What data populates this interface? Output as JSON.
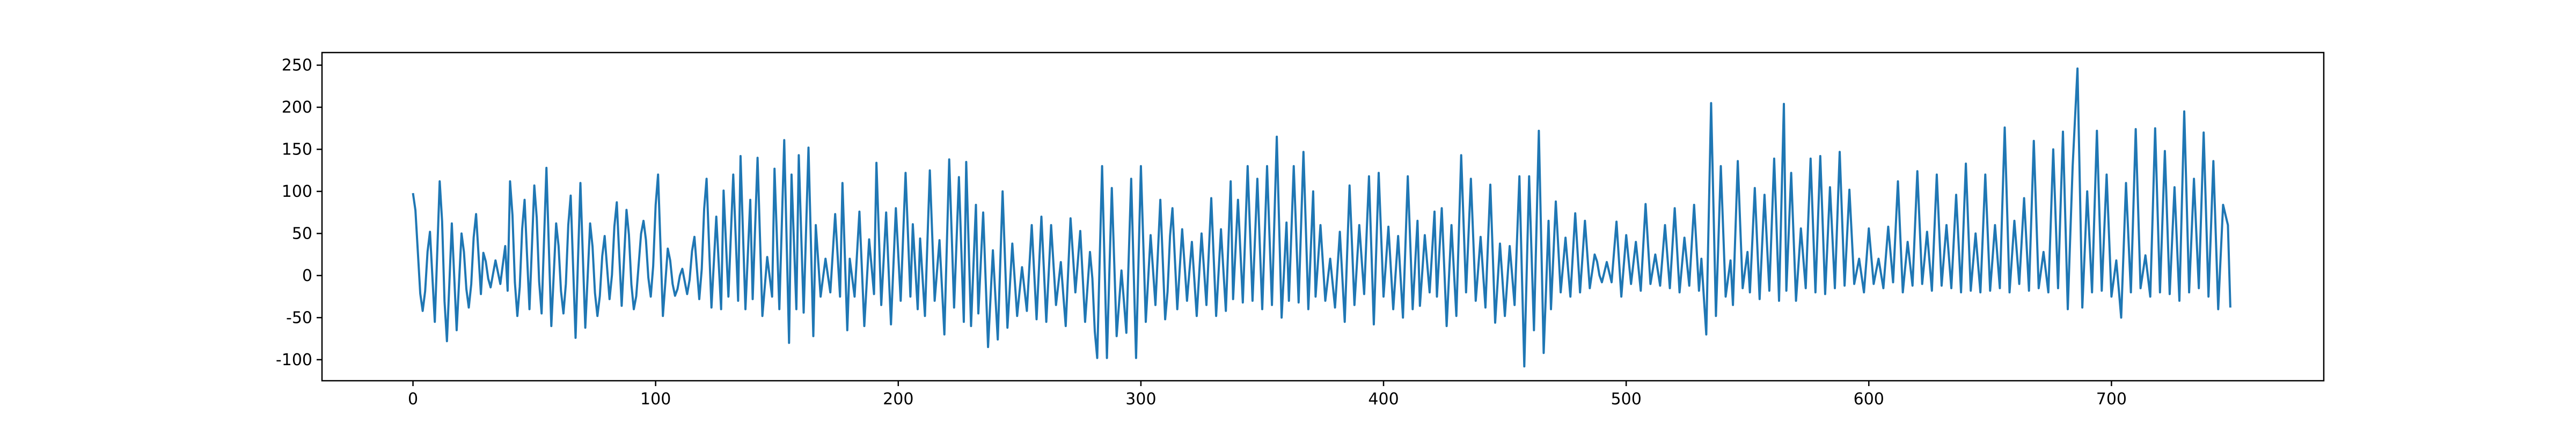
{
  "chart_data": {
    "type": "line",
    "title": "",
    "xlabel": "",
    "ylabel": "",
    "xlim": [
      -37.5,
      787.5
    ],
    "ylim": [
      -125,
      265
    ],
    "xticks": [
      0,
      100,
      200,
      300,
      400,
      500,
      600,
      700
    ],
    "yticks": [
      -100,
      -50,
      0,
      50,
      100,
      150,
      200,
      250
    ],
    "grid": false,
    "legend": "none",
    "line_color": "#1f77b4",
    "n_points": 750,
    "peaks": [
      [
        0,
        98
      ],
      [
        7,
        52
      ],
      [
        11,
        112
      ],
      [
        16,
        62
      ],
      [
        20,
        50
      ],
      [
        26,
        73
      ],
      [
        29,
        27
      ],
      [
        34,
        18
      ],
      [
        38,
        35
      ],
      [
        40,
        112
      ],
      [
        46,
        90
      ],
      [
        50,
        107
      ],
      [
        55,
        128
      ],
      [
        59,
        62
      ],
      [
        65,
        95
      ],
      [
        69,
        110
      ],
      [
        73,
        62
      ],
      [
        79,
        47
      ],
      [
        84,
        87
      ],
      [
        88,
        78
      ],
      [
        95,
        65
      ],
      [
        101,
        120
      ],
      [
        105,
        32
      ],
      [
        111,
        8
      ],
      [
        116,
        46
      ],
      [
        121,
        115
      ],
      [
        125,
        70
      ],
      [
        128,
        101
      ],
      [
        132,
        120
      ],
      [
        135,
        142
      ],
      [
        139,
        90
      ],
      [
        142,
        140
      ],
      [
        146,
        22
      ],
      [
        149,
        127
      ],
      [
        153,
        161
      ],
      [
        156,
        120
      ],
      [
        159,
        143
      ],
      [
        163,
        152
      ],
      [
        166,
        60
      ],
      [
        170,
        20
      ],
      [
        174,
        73
      ],
      [
        177,
        110
      ],
      [
        180,
        20
      ],
      [
        184,
        76
      ],
      [
        188,
        43
      ],
      [
        191,
        134
      ],
      [
        195,
        75
      ],
      [
        199,
        80
      ],
      [
        203,
        122
      ],
      [
        206,
        61
      ],
      [
        209,
        44
      ],
      [
        213,
        125
      ],
      [
        217,
        42
      ],
      [
        221,
        138
      ],
      [
        225,
        117
      ],
      [
        228,
        135
      ],
      [
        232,
        84
      ],
      [
        235,
        75
      ],
      [
        239,
        30
      ],
      [
        243,
        100
      ],
      [
        247,
        38
      ],
      [
        251,
        10
      ],
      [
        255,
        60
      ],
      [
        259,
        70
      ],
      [
        263,
        60
      ],
      [
        267,
        16
      ],
      [
        271,
        68
      ],
      [
        275,
        53
      ],
      [
        279,
        28
      ],
      [
        284,
        130
      ],
      [
        288,
        104
      ],
      [
        292,
        6
      ],
      [
        296,
        115
      ],
      [
        300,
        130
      ],
      [
        304,
        48
      ],
      [
        308,
        90
      ],
      [
        313,
        80
      ],
      [
        317,
        55
      ],
      [
        321,
        40
      ],
      [
        325,
        50
      ],
      [
        329,
        92
      ],
      [
        333,
        55
      ],
      [
        337,
        112
      ],
      [
        340,
        90
      ],
      [
        344,
        130
      ],
      [
        348,
        115
      ],
      [
        352,
        130
      ],
      [
        356,
        165
      ],
      [
        360,
        63
      ],
      [
        363,
        130
      ],
      [
        367,
        147
      ],
      [
        371,
        100
      ],
      [
        374,
        60
      ],
      [
        378,
        20
      ],
      [
        382,
        52
      ],
      [
        386,
        107
      ],
      [
        390,
        60
      ],
      [
        394,
        118
      ],
      [
        398,
        122
      ],
      [
        402,
        58
      ],
      [
        406,
        47
      ],
      [
        410,
        118
      ],
      [
        414,
        65
      ],
      [
        417,
        48
      ],
      [
        421,
        76
      ],
      [
        424,
        80
      ],
      [
        428,
        60
      ],
      [
        432,
        143
      ],
      [
        436,
        115
      ],
      [
        440,
        46
      ],
      [
        444,
        108
      ],
      [
        448,
        38
      ],
      [
        452,
        35
      ],
      [
        456,
        118
      ],
      [
        460,
        118
      ],
      [
        464,
        172
      ],
      [
        468,
        65
      ],
      [
        471,
        88
      ],
      [
        475,
        45
      ],
      [
        479,
        74
      ],
      [
        483,
        65
      ],
      [
        487,
        25
      ],
      [
        492,
        16
      ],
      [
        496,
        64
      ],
      [
        500,
        48
      ],
      [
        504,
        40
      ],
      [
        508,
        85
      ],
      [
        512,
        25
      ],
      [
        516,
        60
      ],
      [
        520,
        80
      ],
      [
        524,
        45
      ],
      [
        528,
        84
      ],
      [
        531,
        20
      ],
      [
        535,
        205
      ],
      [
        539,
        130
      ],
      [
        543,
        18
      ],
      [
        546,
        136
      ],
      [
        550,
        28
      ],
      [
        553,
        104
      ],
      [
        557,
        96
      ],
      [
        561,
        139
      ],
      [
        565,
        204
      ],
      [
        568,
        122
      ],
      [
        572,
        56
      ],
      [
        576,
        139
      ],
      [
        580,
        142
      ],
      [
        584,
        105
      ],
      [
        588,
        147
      ],
      [
        592,
        102
      ],
      [
        596,
        20
      ],
      [
        600,
        56
      ],
      [
        604,
        20
      ],
      [
        608,
        58
      ],
      [
        612,
        112
      ],
      [
        616,
        40
      ],
      [
        620,
        124
      ],
      [
        624,
        52
      ],
      [
        628,
        120
      ],
      [
        632,
        60
      ],
      [
        636,
        96
      ],
      [
        640,
        133
      ],
      [
        644,
        50
      ],
      [
        648,
        120
      ],
      [
        652,
        60
      ],
      [
        656,
        176
      ],
      [
        660,
        65
      ],
      [
        664,
        92
      ],
      [
        668,
        160
      ],
      [
        672,
        28
      ],
      [
        676,
        150
      ],
      [
        680,
        171
      ],
      [
        684,
        130
      ],
      [
        686,
        246
      ],
      [
        690,
        100
      ],
      [
        694,
        172
      ],
      [
        698,
        120
      ],
      [
        702,
        18
      ],
      [
        706,
        110
      ],
      [
        710,
        174
      ],
      [
        714,
        24
      ],
      [
        718,
        175
      ],
      [
        722,
        148
      ],
      [
        726,
        105
      ],
      [
        730,
        195
      ],
      [
        734,
        115
      ],
      [
        738,
        170
      ],
      [
        742,
        136
      ],
      [
        746,
        84
      ],
      [
        748,
        60
      ]
    ],
    "troughs": [
      [
        4,
        -42
      ],
      [
        9,
        -55
      ],
      [
        14,
        -78
      ],
      [
        18,
        -65
      ],
      [
        23,
        -38
      ],
      [
        28,
        -22
      ],
      [
        32,
        -14
      ],
      [
        36,
        -10
      ],
      [
        39,
        -18
      ],
      [
        43,
        -48
      ],
      [
        48,
        -40
      ],
      [
        53,
        -45
      ],
      [
        57,
        -60
      ],
      [
        62,
        -45
      ],
      [
        67,
        -74
      ],
      [
        71,
        -62
      ],
      [
        76,
        -48
      ],
      [
        81,
        -28
      ],
      [
        86,
        -36
      ],
      [
        91,
        -40
      ],
      [
        98,
        -25
      ],
      [
        103,
        -48
      ],
      [
        108,
        -24
      ],
      [
        113,
        -22
      ],
      [
        118,
        -28
      ],
      [
        123,
        -38
      ],
      [
        127,
        -40
      ],
      [
        130,
        -25
      ],
      [
        134,
        -30
      ],
      [
        137,
        -40
      ],
      [
        140,
        -28
      ],
      [
        144,
        -48
      ],
      [
        148,
        -25
      ],
      [
        151,
        -40
      ],
      [
        155,
        -80
      ],
      [
        158,
        -40
      ],
      [
        161,
        -44
      ],
      [
        165,
        -72
      ],
      [
        168,
        -25
      ],
      [
        172,
        -20
      ],
      [
        176,
        -25
      ],
      [
        179,
        -65
      ],
      [
        182,
        -25
      ],
      [
        186,
        -60
      ],
      [
        190,
        -22
      ],
      [
        193,
        -35
      ],
      [
        197,
        -58
      ],
      [
        201,
        -30
      ],
      [
        205,
        -25
      ],
      [
        208,
        -40
      ],
      [
        211,
        -48
      ],
      [
        215,
        -30
      ],
      [
        219,
        -70
      ],
      [
        223,
        -38
      ],
      [
        227,
        -55
      ],
      [
        230,
        -60
      ],
      [
        233,
        -45
      ],
      [
        237,
        -85
      ],
      [
        241,
        -76
      ],
      [
        245,
        -62
      ],
      [
        249,
        -48
      ],
      [
        253,
        -42
      ],
      [
        257,
        -52
      ],
      [
        261,
        -55
      ],
      [
        265,
        -35
      ],
      [
        269,
        -60
      ],
      [
        273,
        -20
      ],
      [
        277,
        -55
      ],
      [
        282,
        -98
      ],
      [
        286,
        -98
      ],
      [
        290,
        -72
      ],
      [
        294,
        -68
      ],
      [
        298,
        -98
      ],
      [
        302,
        -55
      ],
      [
        306,
        -35
      ],
      [
        310,
        -52
      ],
      [
        315,
        -40
      ],
      [
        319,
        -30
      ],
      [
        323,
        -48
      ],
      [
        327,
        -35
      ],
      [
        331,
        -48
      ],
      [
        335,
        -42
      ],
      [
        338,
        -28
      ],
      [
        342,
        -32
      ],
      [
        346,
        -30
      ],
      [
        350,
        -40
      ],
      [
        354,
        -35
      ],
      [
        358,
        -50
      ],
      [
        361,
        -30
      ],
      [
        365,
        -32
      ],
      [
        369,
        -40
      ],
      [
        372,
        -25
      ],
      [
        376,
        -30
      ],
      [
        380,
        -38
      ],
      [
        384,
        -55
      ],
      [
        388,
        -35
      ],
      [
        392,
        -22
      ],
      [
        396,
        -58
      ],
      [
        400,
        -25
      ],
      [
        404,
        -40
      ],
      [
        408,
        -50
      ],
      [
        412,
        -40
      ],
      [
        415,
        -36
      ],
      [
        419,
        -20
      ],
      [
        422,
        -25
      ],
      [
        426,
        -60
      ],
      [
        430,
        -48
      ],
      [
        434,
        -20
      ],
      [
        438,
        -30
      ],
      [
        442,
        -38
      ],
      [
        446,
        -56
      ],
      [
        450,
        -48
      ],
      [
        454,
        -35
      ],
      [
        458,
        -108
      ],
      [
        462,
        -65
      ],
      [
        466,
        -92
      ],
      [
        469,
        -40
      ],
      [
        473,
        -20
      ],
      [
        477,
        -25
      ],
      [
        481,
        -20
      ],
      [
        485,
        -15
      ],
      [
        490,
        -8
      ],
      [
        494,
        -8
      ],
      [
        498,
        -25
      ],
      [
        502,
        -10
      ],
      [
        506,
        -18
      ],
      [
        510,
        -10
      ],
      [
        514,
        -12
      ],
      [
        518,
        -15
      ],
      [
        522,
        -20
      ],
      [
        526,
        -12
      ],
      [
        530,
        -18
      ],
      [
        533,
        -70
      ],
      [
        537,
        -48
      ],
      [
        541,
        -25
      ],
      [
        544,
        -35
      ],
      [
        548,
        -15
      ],
      [
        551,
        -20
      ],
      [
        555,
        -28
      ],
      [
        559,
        -18
      ],
      [
        563,
        -30
      ],
      [
        566,
        -18
      ],
      [
        570,
        -30
      ],
      [
        574,
        -15
      ],
      [
        578,
        -20
      ],
      [
        582,
        -22
      ],
      [
        586,
        -15
      ],
      [
        590,
        -12
      ],
      [
        594,
        -10
      ],
      [
        598,
        -20
      ],
      [
        602,
        -10
      ],
      [
        606,
        -15
      ],
      [
        610,
        -8
      ],
      [
        614,
        -20
      ],
      [
        618,
        -12
      ],
      [
        622,
        -10
      ],
      [
        626,
        -18
      ],
      [
        630,
        -12
      ],
      [
        634,
        -15
      ],
      [
        638,
        -20
      ],
      [
        642,
        -18
      ],
      [
        646,
        -20
      ],
      [
        650,
        -18
      ],
      [
        654,
        -15
      ],
      [
        658,
        -20
      ],
      [
        662,
        -10
      ],
      [
        666,
        -18
      ],
      [
        670,
        -15
      ],
      [
        674,
        -20
      ],
      [
        678,
        -15
      ],
      [
        682,
        -40
      ],
      [
        688,
        -38
      ],
      [
        692,
        -20
      ],
      [
        696,
        -18
      ],
      [
        700,
        -25
      ],
      [
        704,
        -50
      ],
      [
        708,
        -20
      ],
      [
        712,
        -15
      ],
      [
        716,
        -25
      ],
      [
        720,
        -20
      ],
      [
        724,
        -22
      ],
      [
        728,
        -30
      ],
      [
        732,
        -20
      ],
      [
        736,
        -15
      ],
      [
        740,
        -25
      ],
      [
        744,
        -40
      ],
      [
        749,
        -38
      ]
    ]
  }
}
